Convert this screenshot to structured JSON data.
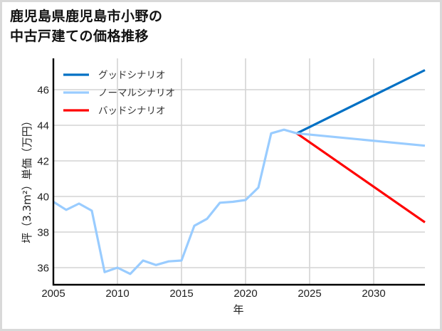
{
  "title_lines": [
    "鹿児島県鹿児島市小野の",
    "中古戸建ての価格推移"
  ],
  "colors": {
    "good": "#0070c4",
    "normal": "#99ccff",
    "bad": "#ff0000",
    "grid": "#d4d4d4",
    "axis": "#000000",
    "frame": "#d9d9d9"
  },
  "chart_data": {
    "type": "line",
    "title": "鹿児島県鹿児島市小野の中古戸建ての価格推移",
    "xlabel": "年",
    "ylabel": "坪（3.3m²）単価（万円）",
    "xlim": [
      2005,
      2034
    ],
    "ylim": [
      35.04,
      47.76
    ],
    "xticks": [
      2005,
      2010,
      2015,
      2020,
      2025,
      2030
    ],
    "yticks": [
      36,
      38,
      40,
      42,
      44,
      46
    ],
    "grid": true,
    "legend_position": "upper left",
    "legend": [
      "グッドシナリオ",
      "ノーマルシナリオ",
      "バッドシナリオ"
    ],
    "series": [
      {
        "name": "ノーマルシナリオ (実績)",
        "color": "#99ccff",
        "x": [
          2005,
          2006,
          2007,
          2008,
          2009,
          2010,
          2011,
          2012,
          2013,
          2014,
          2015,
          2016,
          2017,
          2018,
          2019,
          2020,
          2021,
          2022,
          2023,
          2024
        ],
        "values": [
          39.7,
          39.25,
          39.6,
          39.2,
          35.75,
          36.0,
          35.65,
          36.4,
          36.15,
          36.35,
          36.4,
          38.35,
          38.75,
          39.65,
          39.7,
          39.8,
          40.5,
          43.55,
          43.75,
          43.55
        ]
      },
      {
        "name": "グッドシナリオ",
        "color": "#0070c4",
        "x": [
          2024,
          2034
        ],
        "values": [
          43.55,
          47.1
        ]
      },
      {
        "name": "ノーマルシナリオ",
        "color": "#99ccff",
        "x": [
          2024,
          2034
        ],
        "values": [
          43.55,
          42.85
        ]
      },
      {
        "name": "バッドシナリオ",
        "color": "#ff0000",
        "x": [
          2024,
          2034
        ],
        "values": [
          43.55,
          38.55
        ]
      }
    ]
  }
}
